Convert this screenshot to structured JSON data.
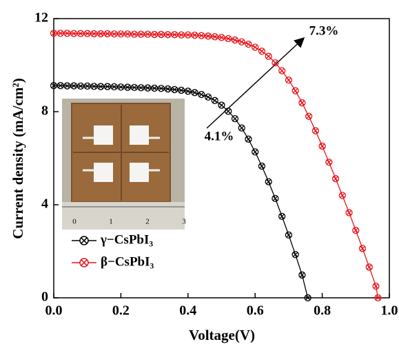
{
  "chart_data": {
    "type": "line",
    "xlabel": "Voltage(V)",
    "ylabel": "Current density (mA/cm²)",
    "xlim": [
      0,
      1.0
    ],
    "ylim": [
      0,
      12
    ],
    "xticks": [
      {
        "value": 0,
        "label": "0.0"
      },
      {
        "value": 0.2,
        "label": "0.2"
      },
      {
        "value": 0.4,
        "label": "0.4"
      },
      {
        "value": 0.6,
        "label": "0.6"
      },
      {
        "value": 0.8,
        "label": "0.8"
      },
      {
        "value": 1.0,
        "label": "1.0"
      }
    ],
    "yticks": [
      0,
      4,
      8,
      12
    ],
    "legend": "lower left",
    "annotations": [
      "4.1%",
      "7.3%"
    ],
    "inset_ruler_labels": [
      "0",
      "1",
      "2",
      "3"
    ],
    "series": [
      {
        "name": "γ−CsPbI₃",
        "color": "#000000",
        "x": [
          0,
          0.02,
          0.04,
          0.06,
          0.08,
          0.1,
          0.12,
          0.14,
          0.16,
          0.18,
          0.2,
          0.22,
          0.24,
          0.26,
          0.28,
          0.3,
          0.32,
          0.34,
          0.36,
          0.38,
          0.4,
          0.42,
          0.44,
          0.46,
          0.48,
          0.5,
          0.52,
          0.54,
          0.56,
          0.58,
          0.6,
          0.62,
          0.64,
          0.66,
          0.68,
          0.7,
          0.72,
          0.74,
          0.757
        ],
        "values": [
          9.12,
          9.12,
          9.11,
          9.11,
          9.1,
          9.1,
          9.09,
          9.08,
          9.08,
          9.07,
          9.06,
          9.05,
          9.04,
          9.03,
          9.02,
          9.01,
          9.0,
          8.98,
          8.95,
          8.92,
          8.88,
          8.82,
          8.74,
          8.63,
          8.48,
          8.28,
          8.02,
          7.7,
          7.3,
          6.82,
          6.27,
          5.66,
          4.99,
          4.27,
          3.5,
          2.7,
          1.86,
          0.98,
          0
        ]
      },
      {
        "name": "β−CsPbI₃",
        "color": "#e8141b",
        "x": [
          0,
          0.02,
          0.04,
          0.06,
          0.08,
          0.1,
          0.12,
          0.14,
          0.16,
          0.18,
          0.2,
          0.22,
          0.24,
          0.26,
          0.28,
          0.3,
          0.32,
          0.34,
          0.36,
          0.38,
          0.4,
          0.42,
          0.44,
          0.46,
          0.48,
          0.5,
          0.52,
          0.54,
          0.56,
          0.58,
          0.6,
          0.62,
          0.64,
          0.66,
          0.68,
          0.7,
          0.72,
          0.74,
          0.76,
          0.78,
          0.8,
          0.82,
          0.84,
          0.86,
          0.88,
          0.9,
          0.92,
          0.94,
          0.96,
          0.966
        ],
        "values": [
          11.37,
          11.37,
          11.37,
          11.36,
          11.36,
          11.36,
          11.35,
          11.35,
          11.35,
          11.34,
          11.34,
          11.34,
          11.33,
          11.33,
          11.33,
          11.32,
          11.32,
          11.31,
          11.31,
          11.3,
          11.3,
          11.29,
          11.27,
          11.25,
          11.22,
          11.19,
          11.14,
          11.08,
          11.0,
          10.9,
          10.77,
          10.6,
          10.38,
          10.1,
          9.76,
          9.36,
          8.9,
          8.38,
          7.8,
          7.18,
          6.52,
          5.83,
          5.12,
          4.4,
          3.66,
          2.9,
          2.12,
          1.32,
          0.5,
          0
        ]
      }
    ]
  }
}
